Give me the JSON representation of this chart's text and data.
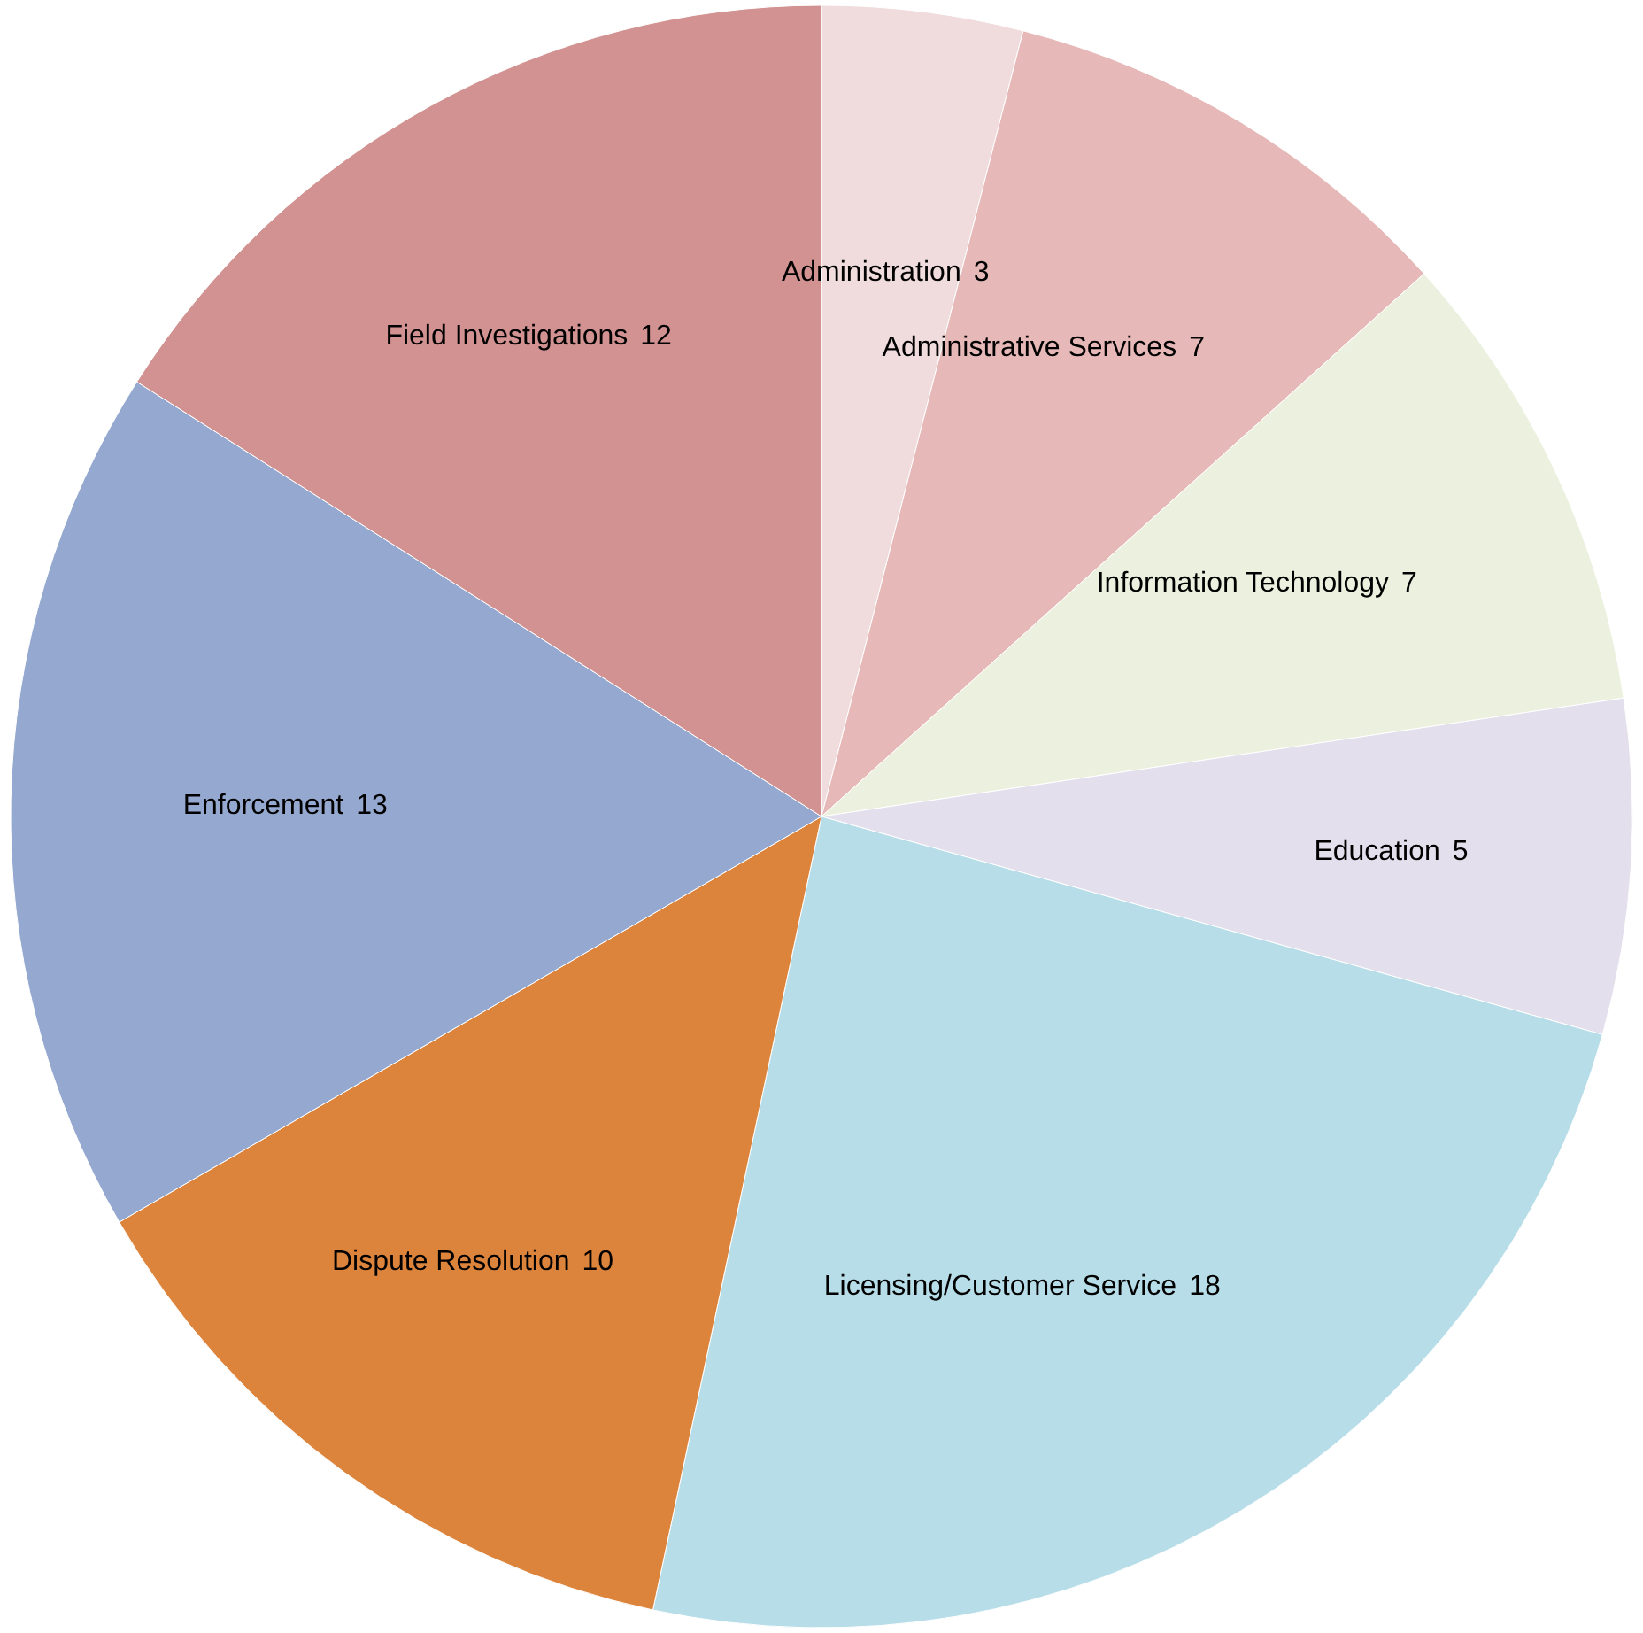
{
  "chart_data": {
    "type": "pie",
    "categories": [
      "Administration",
      "Administrative Services",
      "Information Technology",
      "Education",
      "Licensing/Customer Service",
      "Dispute Resolution",
      "Enforcement",
      "Field Investigations"
    ],
    "values": [
      3,
      7,
      7,
      5,
      18,
      10,
      13,
      12
    ],
    "colors": [
      "#f0dcdc",
      "#e6b8b7",
      "#ebf1de",
      "#e4dfec",
      "#b7dde8",
      "#dd843c",
      "#95a9d0",
      "#d19291"
    ],
    "data_labels": true,
    "legend": false
  }
}
